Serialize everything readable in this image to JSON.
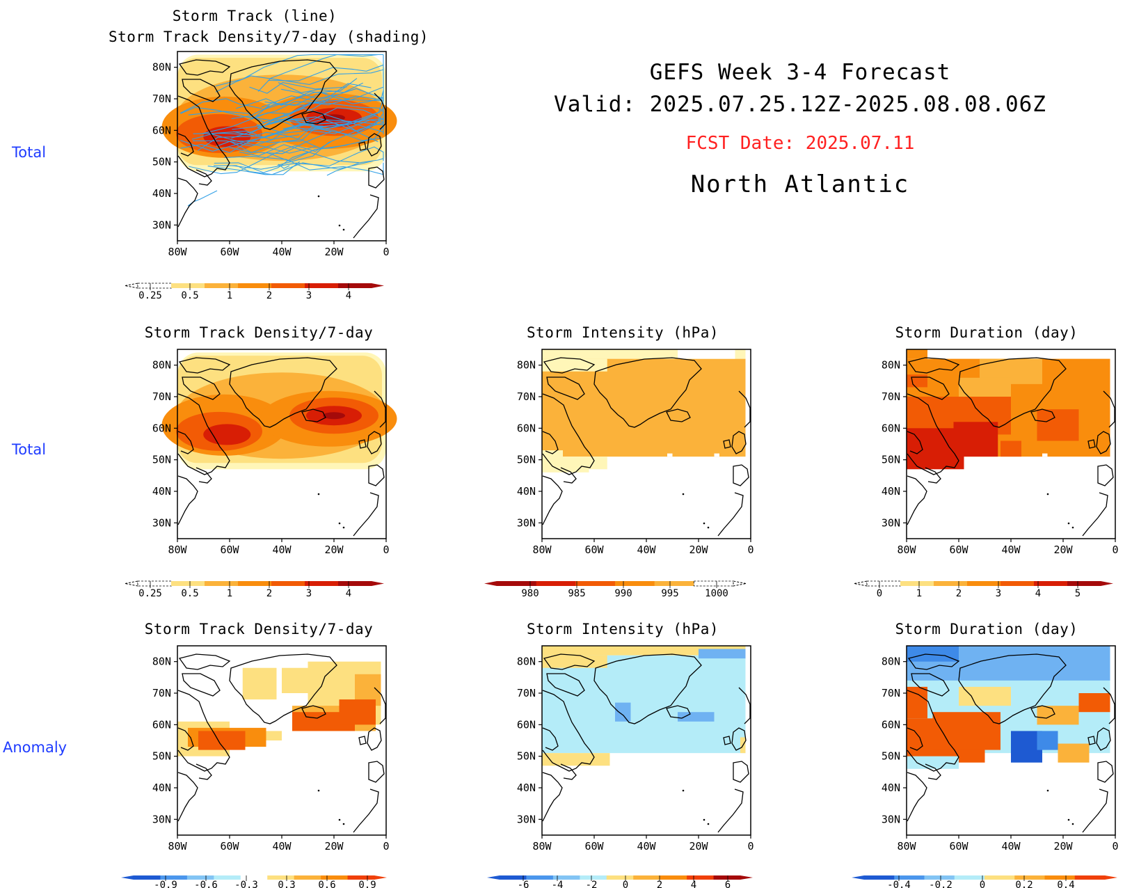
{
  "header": {
    "line1": "GEFS Week 3-4 Forecast",
    "line2": "Valid: 2025.07.25.12Z-2025.08.08.06Z",
    "fcst": "FCST Date: 2025.07.11",
    "region": "North Atlantic"
  },
  "row_labels": {
    "row1": "Total",
    "row2": "Total",
    "row3": "Anomaly"
  },
  "axes": {
    "lat_labels": [
      "80N",
      "70N",
      "60N",
      "50N",
      "40N",
      "30N"
    ],
    "lon_labels": [
      "80W",
      "60W",
      "40W",
      "20W",
      "0"
    ]
  },
  "panels": {
    "p1": {
      "title1": "Storm Track (line)",
      "title2": "Storm Track Density/7-day (shading)"
    },
    "p2": {
      "title": "Storm Track Density/7-day"
    },
    "p3": {
      "title": "Storm Intensity (hPa)"
    },
    "p4": {
      "title": "Storm Duration (day)"
    },
    "p5": {
      "title": "Storm Track Density/7-day"
    },
    "p6": {
      "title": "Storm Intensity (hPa)"
    },
    "p7": {
      "title": "Storm Duration (day)"
    }
  },
  "colorbars": {
    "density": {
      "labels": [
        "0.25",
        "0.5",
        "1",
        "2",
        "3",
        "4"
      ],
      "colors": [
        "#fff6b8",
        "#fde080",
        "#fbb23a",
        "#f98d0d",
        "#f25b05",
        "#d81e05",
        "#a50a0a"
      ]
    },
    "intensity": {
      "labels": [
        "980",
        "985",
        "990",
        "995",
        "1000"
      ],
      "colors": [
        "#a50a0a",
        "#d81e05",
        "#f25b05",
        "#f98d0d",
        "#fbb23a",
        "#fde080"
      ]
    },
    "duration": {
      "labels": [
        "0",
        "1",
        "2",
        "3",
        "4",
        "5"
      ],
      "colors": [
        "#fff6b8",
        "#fde080",
        "#fbb23a",
        "#f98d0d",
        "#f25b05",
        "#d81e05",
        "#a50a0a"
      ]
    },
    "density_anom": {
      "labels": [
        "-0.9",
        "-0.6",
        "-0.3",
        "0.3",
        "0.6",
        "0.9"
      ],
      "colors": [
        "#1e5ad2",
        "#4b96ec",
        "#82c4f4",
        "#b4ecf8",
        "#ffffff",
        "#fde080",
        "#fbb23a",
        "#f98d0d",
        "#f0400a"
      ]
    },
    "intensity_anom": {
      "labels": [
        "-6",
        "-4",
        "-2",
        "0",
        "2",
        "4",
        "6"
      ],
      "colors": [
        "#1e5ad2",
        "#4b96ec",
        "#82c4f4",
        "#b4ecf8",
        "#fde080",
        "#fbb23a",
        "#f98d0d",
        "#f0400a",
        "#a50a0a"
      ]
    },
    "duration_anom": {
      "labels": [
        "-0.4",
        "-0.2",
        "0",
        "0.2",
        "0.4"
      ],
      "colors": [
        "#1e5ad2",
        "#4b96ec",
        "#82c4f4",
        "#b4ecf8",
        "#fde080",
        "#fbb23a",
        "#f98d0d",
        "#f0400a"
      ]
    }
  },
  "map_colors": {
    "c1": "#fff6b8",
    "c2": "#fde080",
    "c3": "#fbb23a",
    "c4": "#f98d0d",
    "c5": "#f25b05",
    "c6": "#d81e05",
    "c7": "#a50a0a",
    "b1": "#b4ecf8",
    "b2": "#6fb2f2",
    "b3": "#3e8ae8",
    "b4": "#1e5ad2",
    "track": "#33a0e6"
  }
}
